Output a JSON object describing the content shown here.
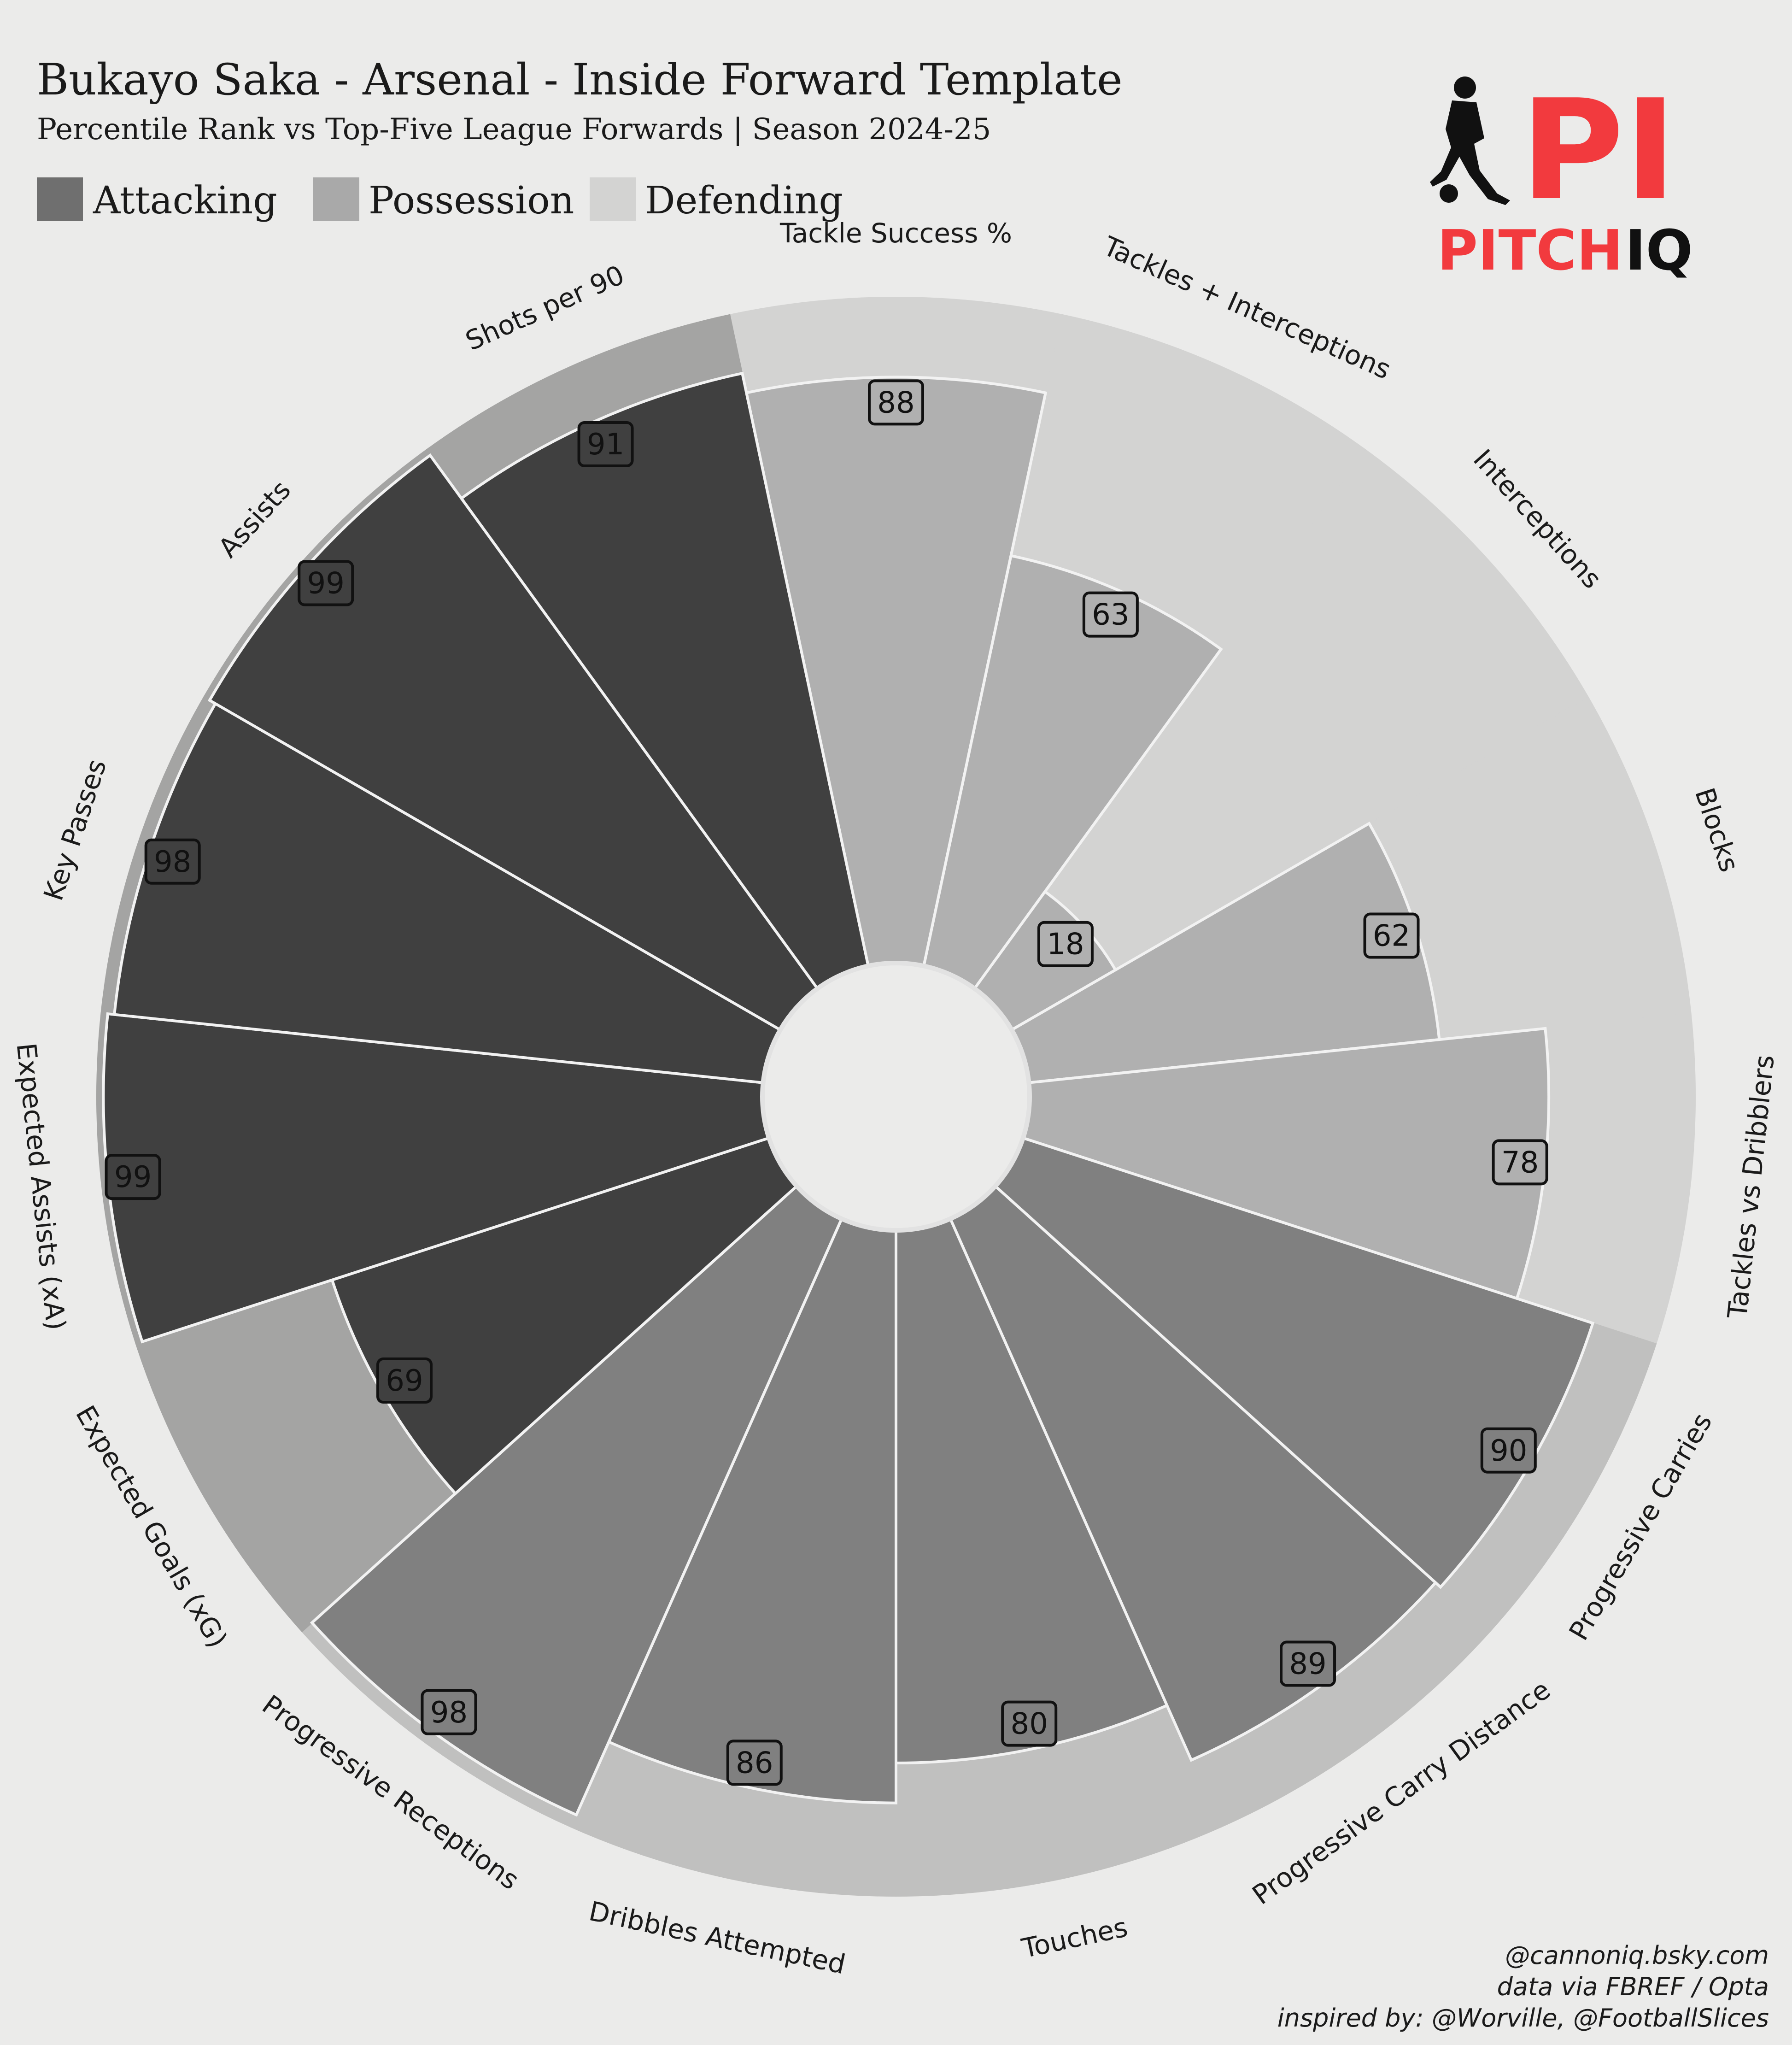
{
  "header": {
    "title": "Bukayo Saka - Arsenal - Inside Forward Template",
    "subtitle": "Percentile Rank vs Top-Five League Forwards | Season 2024-25"
  },
  "legend": [
    {
      "label": "Attacking",
      "color": "#6f6f6f"
    },
    {
      "label": "Possession",
      "color": "#a9a9a9"
    },
    {
      "label": "Defending",
      "color": "#d3d3d2"
    }
  ],
  "logo": {
    "mark": "PI",
    "word1": "PITCH",
    "word2": "IQ",
    "accent": "#f23a3e"
  },
  "credits": [
    "@cannoniq.bsky.com",
    "data via FBREF / Opta",
    "inspired by: @Worville, @FootballSlices"
  ],
  "chart_data": {
    "type": "polar-bar",
    "ylim": [
      0,
      100
    ],
    "groups": {
      "Attacking": {
        "bar": "#404040",
        "background": "#a4a4a3"
      },
      "Possession": {
        "bar": "#808080",
        "background": "#c0c0bf"
      },
      "Defending": {
        "bar": "#b0b0b0",
        "background": "#d3d3d2"
      }
    },
    "slices": [
      {
        "label": "Tackle Success %",
        "value": 88,
        "group": "Defending"
      },
      {
        "label": "Tackles + Interceptions",
        "value": 63,
        "group": "Defending"
      },
      {
        "label": "Interceptions",
        "value": 18,
        "group": "Defending"
      },
      {
        "label": "Blocks",
        "value": 62,
        "group": "Defending"
      },
      {
        "label": "Tackles vs Dribblers",
        "value": 78,
        "group": "Defending"
      },
      {
        "label": "Progressive Carries",
        "value": 90,
        "group": "Possession"
      },
      {
        "label": "Progressive Carry Distance",
        "value": 89,
        "group": "Possession"
      },
      {
        "label": "Touches",
        "value": 80,
        "group": "Possession"
      },
      {
        "label": "Dribbles Attempted",
        "value": 86,
        "group": "Possession"
      },
      {
        "label": "Progressive Receptions",
        "value": 98,
        "group": "Possession"
      },
      {
        "label": "Expected Goals (xG)",
        "value": 69,
        "group": "Attacking"
      },
      {
        "label": "Expected Assists (xA)",
        "value": 99,
        "group": "Attacking"
      },
      {
        "label": "Key Passes",
        "value": 98,
        "group": "Attacking"
      },
      {
        "label": "Assists",
        "value": 99,
        "group": "Attacking"
      },
      {
        "label": "Shots per 90",
        "value": 91,
        "group": "Attacking"
      }
    ]
  }
}
